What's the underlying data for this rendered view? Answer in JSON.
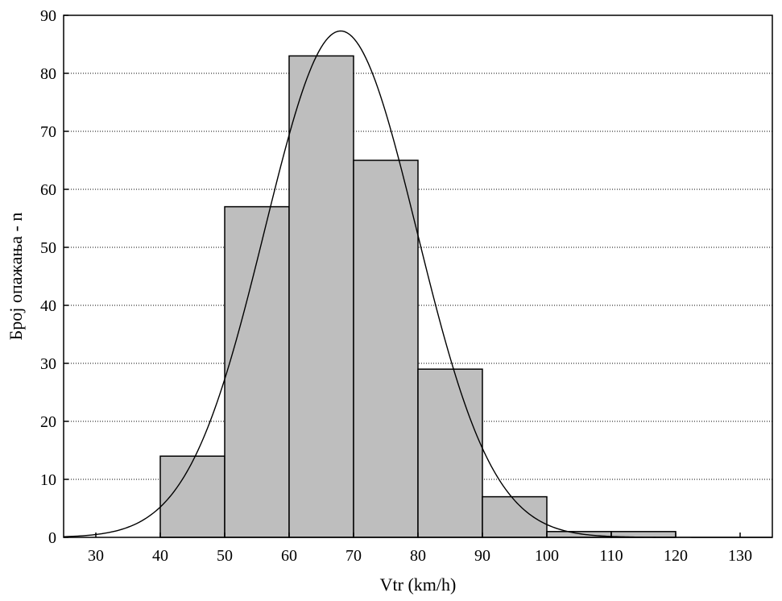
{
  "chart_data": {
    "type": "bar",
    "subtype": "histogram",
    "xlabel": "Vtr (km/h)",
    "ylabel": "Број опажања - n",
    "xlim": [
      25,
      135
    ],
    "ylim": [
      0,
      90
    ],
    "x_ticks": [
      30,
      40,
      50,
      60,
      70,
      80,
      90,
      100,
      110,
      120,
      130
    ],
    "y_ticks": [
      0,
      10,
      20,
      30,
      40,
      50,
      60,
      70,
      80,
      90
    ],
    "bins": [
      {
        "from": 40,
        "to": 50,
        "value": 14
      },
      {
        "from": 50,
        "to": 60,
        "value": 57
      },
      {
        "from": 60,
        "to": 70,
        "value": 83
      },
      {
        "from": 70,
        "to": 80,
        "value": 65
      },
      {
        "from": 80,
        "to": 90,
        "value": 29
      },
      {
        "from": 90,
        "to": 100,
        "value": 7
      },
      {
        "from": 100,
        "to": 110,
        "value": 1
      },
      {
        "from": 110,
        "to": 120,
        "value": 1
      }
    ],
    "fit_curve": {
      "type": "normal",
      "mean": 68,
      "sd": 11.8,
      "peak": 87.3,
      "x_range": [
        25,
        135
      ]
    },
    "grid": "horizontal-dotted",
    "colors": {
      "bar_fill": "#bebebe",
      "bar_stroke": "#000000",
      "curve": "#000000"
    }
  }
}
